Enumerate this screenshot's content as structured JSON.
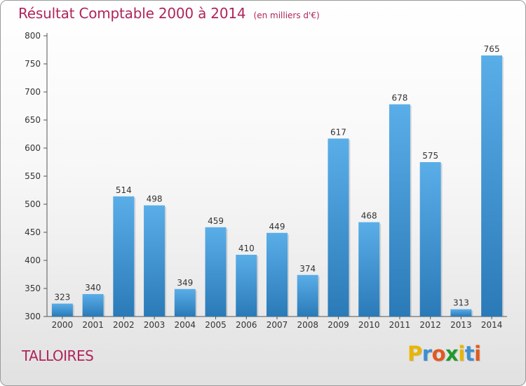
{
  "header": {
    "title": "Résultat Comptable 2000 à 2014",
    "unit": "(en milliers d'€)"
  },
  "footer": {
    "commune": "TALLOIRES",
    "brand_letters": [
      "P",
      "r",
      "o",
      "x",
      "i",
      "t",
      "i"
    ],
    "brand_colors": [
      "#e8b600",
      "#3f8fd0",
      "#e05a20",
      "#1f9a2e",
      "#e8b600",
      "#3f8fd0",
      "#e05a20"
    ]
  },
  "chart_data": {
    "type": "bar",
    "title": "Résultat Comptable 2000 à 2014",
    "subtitle": "(en milliers d'€)",
    "xlabel": "",
    "ylabel": "",
    "categories": [
      "2000",
      "2001",
      "2002",
      "2003",
      "2004",
      "2005",
      "2006",
      "2007",
      "2008",
      "2009",
      "2010",
      "2011",
      "2012",
      "2013",
      "2014"
    ],
    "values": [
      323,
      340,
      514,
      498,
      349,
      459,
      410,
      449,
      374,
      617,
      468,
      678,
      575,
      313,
      765
    ],
    "ylim": [
      300,
      800
    ],
    "yticks": [
      300,
      350,
      400,
      450,
      500,
      550,
      600,
      650,
      700,
      750,
      800
    ],
    "grid": false,
    "bar_color_top": "#5aaee8",
    "bar_color_bottom": "#2a7ab8",
    "title_color": "#b0245c"
  }
}
